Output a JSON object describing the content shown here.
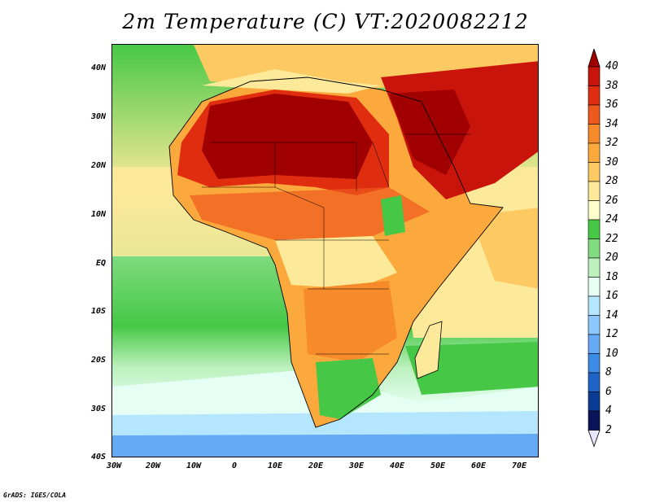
{
  "title": "2m Temperature (C) VT:2020082212",
  "credit": "GrADS: IGES/COLA",
  "map": {
    "lon_range": [
      -30,
      75
    ],
    "lat_range": [
      -40,
      45
    ],
    "lat_ticks": [
      "40N",
      "30N",
      "20N",
      "10N",
      "EQ",
      "10S",
      "20S",
      "30S",
      "40S"
    ],
    "lon_ticks": [
      "30W",
      "20W",
      "10W",
      "0",
      "10E",
      "20E",
      "30E",
      "40E",
      "50E",
      "60E",
      "70E"
    ],
    "features": {
      "sahara": "hot",
      "arabia": "hot",
      "southern_ocean": "cool"
    }
  },
  "colorbar": {
    "levels": [
      "40",
      "38",
      "36",
      "34",
      "32",
      "30",
      "28",
      "26",
      "24",
      "22",
      "20",
      "18",
      "16",
      "14",
      "12",
      "10",
      "8",
      "6",
      "4",
      "2"
    ],
    "colors": [
      "#a00000",
      "#c8140a",
      "#e02d10",
      "#ee5a1e",
      "#f78a2a",
      "#fba83c",
      "#fdc962",
      "#fde99a",
      "#ffffcc",
      "#46c846",
      "#82dc82",
      "#bcf0bc",
      "#e6fff5",
      "#b4e6ff",
      "#8cc8ff",
      "#64aaf5",
      "#3c8ce6",
      "#1e64c8",
      "#0a3c96",
      "#0a145a"
    ],
    "bottom_arrow_color": "#e6e6ff"
  }
}
